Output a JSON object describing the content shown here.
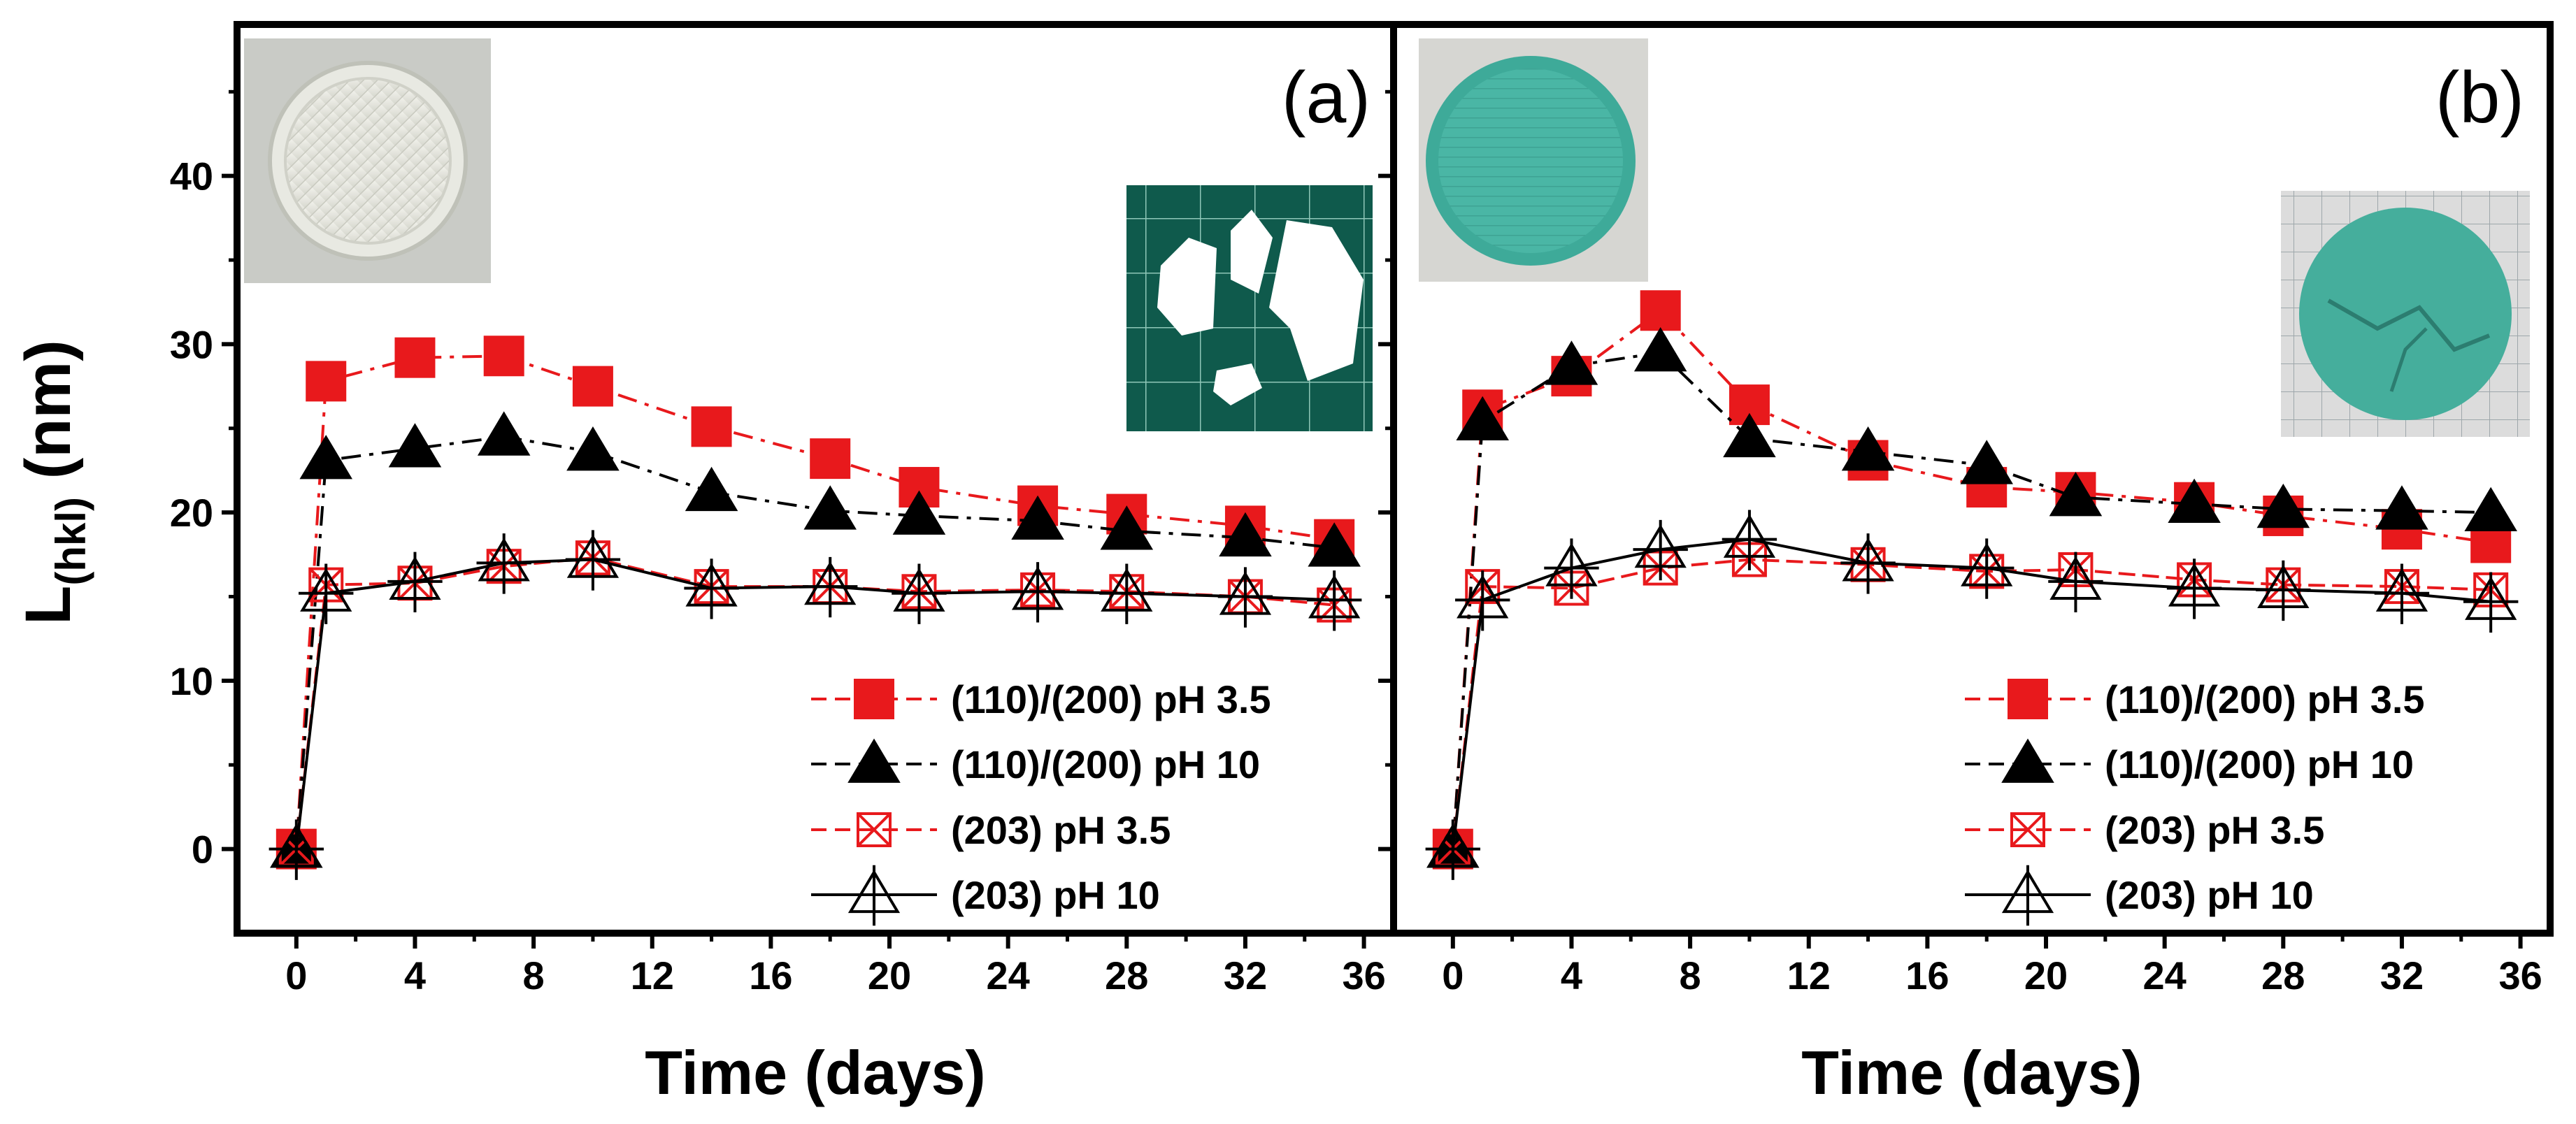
{
  "chart_data": {
    "type": "line",
    "ylabel": "L",
    "ylabel_sub": "(hkl)",
    "ylabel_unit": " (nm)",
    "xlabel": "Time (days)",
    "xlim": [
      -2,
      37
    ],
    "ylim": [
      -5,
      49
    ],
    "xticks": [
      "0",
      "4",
      "8",
      "12",
      "16",
      "20",
      "24",
      "28",
      "32",
      "36"
    ],
    "yticks": [
      "0",
      "10",
      "20",
      "30",
      "40"
    ],
    "x": [
      0,
      1,
      4,
      7,
      10,
      14,
      18,
      21,
      25,
      28,
      32,
      35
    ],
    "panels": [
      {
        "label": "(a)",
        "inset_photos": [
          "intact-disc-photo",
          "fragments-on-grid-photo"
        ],
        "series": [
          {
            "name": "(110)/(200) pH 3.5",
            "marker": "filled-square",
            "color": "#e8191c",
            "values": [
              0,
              27.8,
              29.2,
              29.3,
              27.5,
              25.1,
              23.2,
              21.5,
              20.4,
              19.9,
              19.2,
              18.4
            ]
          },
          {
            "name": "(110)/(200) pH 10",
            "marker": "filled-triangle",
            "color": "#000000",
            "values": [
              0,
              23.1,
              23.8,
              24.5,
              23.6,
              21.2,
              20.1,
              19.8,
              19.5,
              18.9,
              18.5,
              17.9
            ]
          },
          {
            "name": "(203) pH 3.5",
            "marker": "boxed-x",
            "color": "#e8191c",
            "values": [
              0,
              15.7,
              15.8,
              16.8,
              17.3,
              15.6,
              15.6,
              15.3,
              15.4,
              15.3,
              15.0,
              14.5
            ]
          },
          {
            "name": "(203) pH 10",
            "marker": "open-triangle",
            "color": "#000000",
            "values": [
              0,
              15.2,
              15.9,
              17.0,
              17.2,
              15.5,
              15.6,
              15.2,
              15.3,
              15.2,
              15.0,
              14.8
            ]
          }
        ]
      },
      {
        "label": "(b)",
        "inset_photos": [
          "green-disc-photo",
          "cracked-green-disc-on-grid-photo"
        ],
        "series": [
          {
            "name": "(110)/(200) pH 3.5",
            "marker": "filled-square",
            "color": "#e8191c",
            "values": [
              0,
              26.1,
              28.1,
              32.0,
              26.4,
              23.1,
              21.5,
              21.2,
              20.6,
              19.8,
              19.0,
              18.2
            ]
          },
          {
            "name": "(110)/(200) pH 10",
            "marker": "filled-triangle",
            "color": "#000000",
            "values": [
              0,
              25.4,
              28.7,
              29.5,
              24.4,
              23.6,
              22.8,
              20.9,
              20.5,
              20.2,
              20.1,
              20.0
            ]
          },
          {
            "name": "(203) pH 3.5",
            "marker": "boxed-x",
            "color": "#e8191c",
            "values": [
              0,
              15.6,
              15.5,
              16.7,
              17.2,
              16.9,
              16.5,
              16.6,
              16.0,
              15.7,
              15.6,
              15.4
            ]
          },
          {
            "name": "(203) pH 10",
            "marker": "open-triangle",
            "color": "#000000",
            "values": [
              0,
              14.8,
              16.7,
              17.8,
              18.4,
              17.0,
              16.7,
              15.9,
              15.5,
              15.4,
              15.2,
              14.7
            ]
          }
        ]
      }
    ]
  }
}
